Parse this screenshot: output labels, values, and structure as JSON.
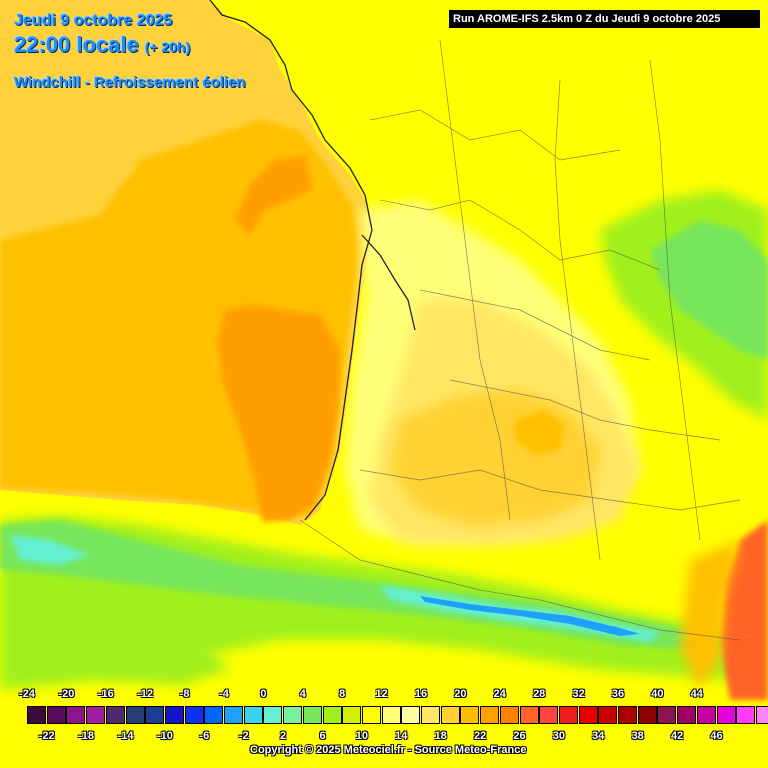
{
  "header": {
    "date": "Jeudi 9 octobre 2025",
    "time": "22:00 locale",
    "lead": "(+ 20h)",
    "parameter": "Windchill - Refroissement éolien"
  },
  "run_label": "Run AROME-IFS 2.5km 0 Z du Jeudi 9 octobre 2025",
  "copyright": "Copyright © 2025 Meteociel.fr - Source Meteo-France",
  "legend": {
    "top_ticks": [
      "-24",
      "-20",
      "-16",
      "-12",
      "-8",
      "-4",
      "0",
      "4",
      "8",
      "12",
      "16",
      "20",
      "24",
      "28",
      "32",
      "36",
      "40",
      "44"
    ],
    "bottom_ticks": [
      "-22",
      "-18",
      "-14",
      "-10",
      "-6",
      "-2",
      "2",
      "6",
      "10",
      "14",
      "18",
      "22",
      "26",
      "30",
      "34",
      "38",
      "42",
      "46"
    ],
    "colors": [
      "#3c0a3c",
      "#5a0a5a",
      "#8c148c",
      "#a01ea0",
      "#50286e",
      "#283c78",
      "#1e3c96",
      "#1414c8",
      "#0a32f0",
      "#0064ff",
      "#1ea0ff",
      "#3cd2f0",
      "#64f0d2",
      "#78f0a0",
      "#78e65a",
      "#a0f01e",
      "#d2f000",
      "#ffff00",
      "#ffff78",
      "#ffffa0",
      "#ffe664",
      "#ffd232",
      "#ffbe00",
      "#ffa000",
      "#ff8200",
      "#ff6428",
      "#ff463c",
      "#f01e1e",
      "#e60000",
      "#c80000",
      "#aa0000",
      "#8c0000",
      "#8c1450",
      "#a00064",
      "#c800a0",
      "#e600dc",
      "#ff3cff",
      "#ff82ff"
    ]
  },
  "map": {
    "colors": {
      "ocean_main": "#ffc000",
      "ocean_warm": "#ff9e00",
      "ocean_edge": "#ffd23c",
      "land_yellow": "#ffff00",
      "land_pale": "#ffff78",
      "land_cream": "#ffe664",
      "land_orange": "#ffd232",
      "mountain_green": "#78e65a",
      "mountain_lime": "#a0f01e",
      "mountain_cyan": "#64f0d2",
      "mountain_blue": "#1ea0ff",
      "med_warm": "#ff6428",
      "border_line": "#555555",
      "coast_line": "#222222"
    }
  }
}
